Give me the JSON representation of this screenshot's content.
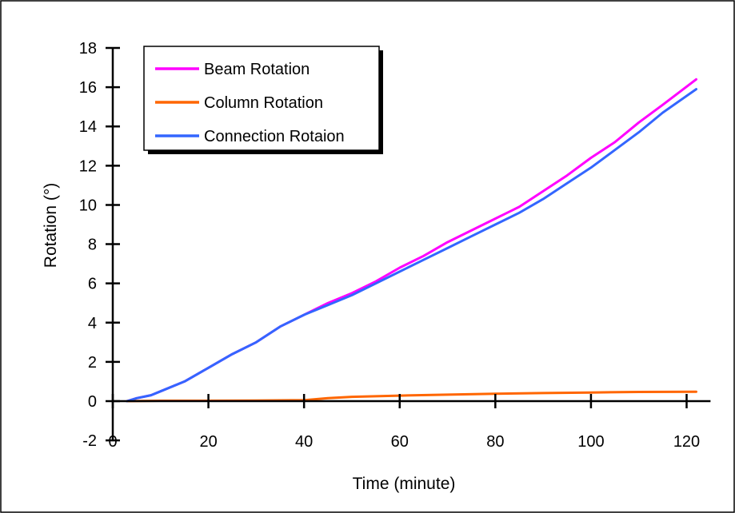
{
  "chart_data": {
    "type": "line",
    "title": "",
    "xlabel": "Time (minute)",
    "ylabel": "Rotation (°)",
    "xlim": [
      0,
      125
    ],
    "ylim": [
      -2,
      18
    ],
    "x_ticks": [
      0,
      20,
      40,
      60,
      80,
      100,
      120
    ],
    "y_ticks": [
      -2,
      0,
      2,
      4,
      6,
      8,
      10,
      12,
      14,
      16,
      18
    ],
    "x_tick_labels": [
      "0",
      "20",
      "40",
      "60",
      "80",
      "100",
      "120"
    ],
    "y_tick_labels": [
      "-2",
      "0",
      "2",
      "4",
      "6",
      "8",
      "10",
      "12",
      "14",
      "16",
      "18"
    ],
    "grid": false,
    "legend": {
      "position": "top-left",
      "boxed": true,
      "shadow": true
    },
    "series": [
      {
        "name": "Beam Rotation",
        "color": "#ff00ff",
        "x": [
          3,
          5,
          8,
          10,
          15,
          20,
          25,
          30,
          35,
          40,
          45,
          50,
          55,
          60,
          65,
          70,
          75,
          80,
          85,
          90,
          95,
          100,
          105,
          110,
          115,
          122
        ],
        "y": [
          0,
          0.15,
          0.3,
          0.5,
          1.0,
          1.7,
          2.4,
          3.0,
          3.8,
          4.4,
          5.0,
          5.5,
          6.1,
          6.8,
          7.4,
          8.1,
          8.7,
          9.3,
          9.9,
          10.7,
          11.5,
          12.4,
          13.2,
          14.2,
          15.1,
          16.4
        ]
      },
      {
        "name": "Column Rotation",
        "color": "#ff6600",
        "x": [
          3,
          10,
          20,
          30,
          40,
          45,
          50,
          60,
          70,
          80,
          90,
          100,
          110,
          122
        ],
        "y": [
          0,
          0.02,
          0.02,
          0.03,
          0.05,
          0.15,
          0.22,
          0.28,
          0.33,
          0.38,
          0.41,
          0.44,
          0.47,
          0.48
        ]
      },
      {
        "name": "Connection Rotaion",
        "color": "#3366ff",
        "x": [
          3,
          5,
          8,
          10,
          15,
          20,
          25,
          30,
          35,
          40,
          45,
          50,
          55,
          60,
          65,
          70,
          75,
          80,
          85,
          90,
          95,
          100,
          105,
          110,
          115,
          122
        ],
        "y": [
          0,
          0.15,
          0.3,
          0.5,
          1.0,
          1.7,
          2.4,
          3.0,
          3.8,
          4.4,
          4.9,
          5.4,
          6.0,
          6.6,
          7.2,
          7.8,
          8.4,
          9.0,
          9.6,
          10.3,
          11.1,
          11.9,
          12.8,
          13.7,
          14.7,
          15.9
        ]
      }
    ]
  }
}
